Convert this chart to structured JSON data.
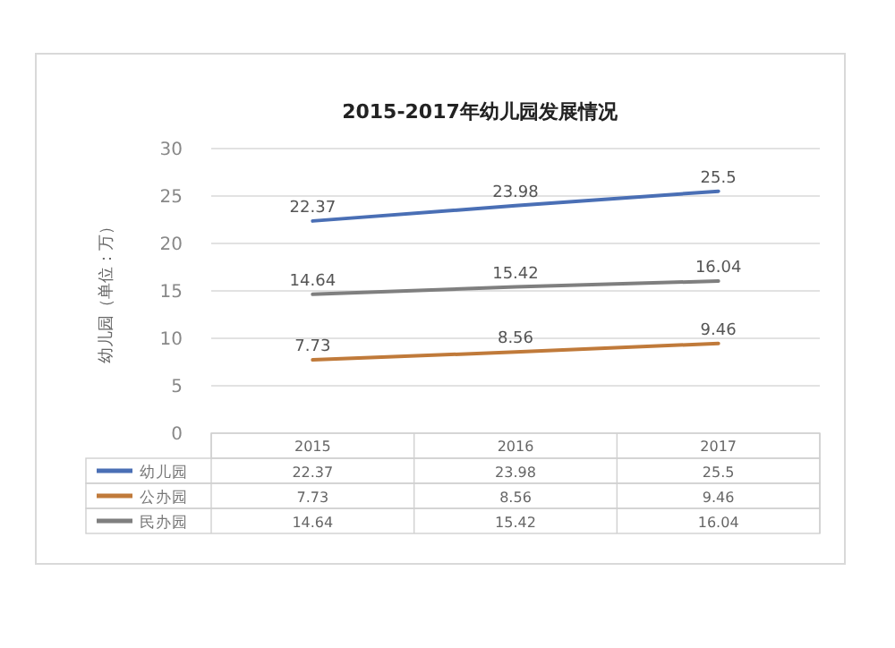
{
  "chart_data": {
    "type": "line",
    "title": "2015-2017年幼儿园发展情况",
    "ylabel": "幼儿园（单位：万）",
    "categories": [
      "2015",
      "2016",
      "2017"
    ],
    "series": [
      {
        "name": "幼儿园",
        "color": "#4a6fb5",
        "values": [
          22.37,
          23.98,
          25.5
        ]
      },
      {
        "name": "公办园",
        "color": "#c07a3a",
        "values": [
          7.73,
          8.56,
          9.46
        ]
      },
      {
        "name": "民办园",
        "color": "#7f7f7f",
        "values": [
          14.64,
          15.42,
          16.04
        ]
      }
    ],
    "annotations": [
      {
        "text": "22.37",
        "x": "2015",
        "y": 22.37
      },
      {
        "text": "23.98",
        "x": "2016",
        "y": 23.98
      },
      {
        "text": "25.5",
        "x": "2017",
        "y": 25.5
      },
      {
        "text": "7.73",
        "x": "2015",
        "y": 7.73
      },
      {
        "text": "8.56",
        "x": "2016",
        "y": 8.56
      },
      {
        "text": "9.46",
        "x": "2017",
        "y": 9.46
      },
      {
        "text": "14.64",
        "x": "2015",
        "y": 14.64
      },
      {
        "text": "15.42",
        "x": "2016",
        "y": 15.42
      },
      {
        "text": "16.04",
        "x": "2017",
        "y": 16.04
      }
    ],
    "ylim": [
      0,
      30
    ],
    "yticks": [
      0,
      5,
      10,
      15,
      20,
      25,
      30
    ],
    "grid": "y",
    "legend": "bottom",
    "data_labels": true,
    "marker": "none",
    "line_style": "solid"
  }
}
